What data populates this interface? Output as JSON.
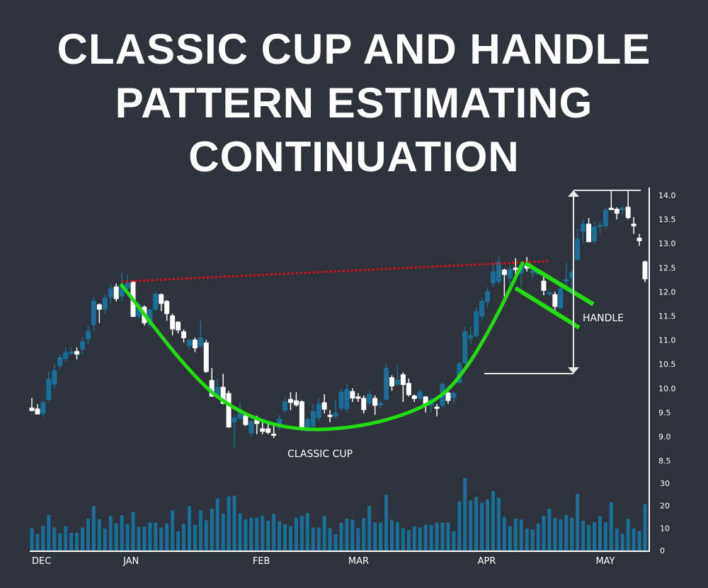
{
  "title": {
    "lines": [
      "CLASSIC CUP AND HANDLE",
      "PATTERN ESTIMATING",
      "CONTINUATION"
    ]
  },
  "chart_data": {
    "type": "candlestick",
    "title": "CLASSIC CUP AND HANDLE PATTERN ESTIMATING CONTINUATION",
    "price_axis": {
      "ylim": [
        8.5,
        14.0
      ],
      "ticks": [
        "14.0",
        "13.5",
        "13.0",
        "12.5",
        "12.0",
        "11.5",
        "11.0",
        "10.5",
        "10.0",
        "9.5",
        "9.0",
        "8.5"
      ]
    },
    "volume_axis": {
      "ylim": [
        0,
        30
      ],
      "ticks": [
        "30",
        "20",
        "10",
        "0"
      ]
    },
    "x_labels": [
      {
        "label": "DEC",
        "index": 0
      },
      {
        "label": "JAN",
        "index": 17
      },
      {
        "label": "FEB",
        "index": 40
      },
      {
        "label": "MAR",
        "index": 57
      },
      {
        "label": "APR",
        "index": 80
      },
      {
        "label": "MAY",
        "index": 101
      }
    ],
    "candle_format": [
      "open",
      "high",
      "low",
      "close"
    ],
    "colors": {
      "up": "#1a6f98",
      "down": "#ffffff",
      "volume": "#1a6f98",
      "cup": "#22dd11",
      "resistance": "#e0101a",
      "background": "#2e323a"
    },
    "candles": [
      [
        9.6,
        9.8,
        9.52,
        9.53
      ],
      [
        9.58,
        9.67,
        9.46,
        9.46
      ],
      [
        9.48,
        9.77,
        9.4,
        9.71
      ],
      [
        9.76,
        10.35,
        9.72,
        10.2
      ],
      [
        10.08,
        10.5,
        10.0,
        10.37
      ],
      [
        10.46,
        10.7,
        10.4,
        10.64
      ],
      [
        10.61,
        10.85,
        10.55,
        10.75
      ],
      [
        10.73,
        10.85,
        10.7,
        10.76
      ],
      [
        10.77,
        10.85,
        10.6,
        10.7
      ],
      [
        10.8,
        11.05,
        10.7,
        10.97
      ],
      [
        11.02,
        11.3,
        10.9,
        11.19
      ],
      [
        11.31,
        11.9,
        11.2,
        11.81
      ],
      [
        11.74,
        11.76,
        11.35,
        11.63
      ],
      [
        11.63,
        11.95,
        11.55,
        11.88
      ],
      [
        11.88,
        12.15,
        11.75,
        12.07
      ],
      [
        12.11,
        12.17,
        11.8,
        11.85
      ],
      [
        11.9,
        12.4,
        11.8,
        12.14
      ],
      [
        12.07,
        12.35,
        12.05,
        12.19
      ],
      [
        12.21,
        12.22,
        11.48,
        11.48
      ],
      [
        11.5,
        11.8,
        11.45,
        11.74
      ],
      [
        11.69,
        11.72,
        11.3,
        11.35
      ],
      [
        11.31,
        11.66,
        11.25,
        11.63
      ],
      [
        11.63,
        12.0,
        11.6,
        11.96
      ],
      [
        11.95,
        11.97,
        11.6,
        11.75
      ],
      [
        11.81,
        11.83,
        11.4,
        11.54
      ],
      [
        11.51,
        11.55,
        11.1,
        11.22
      ],
      [
        11.38,
        11.39,
        11.14,
        11.2
      ],
      [
        11.18,
        11.22,
        10.95,
        11.04
      ],
      [
        10.88,
        11.02,
        10.8,
        11.01
      ],
      [
        11.01,
        11.05,
        10.75,
        10.83
      ],
      [
        10.87,
        11.4,
        10.85,
        11.05
      ],
      [
        10.95,
        11.0,
        10.32,
        10.34
      ],
      [
        10.17,
        10.42,
        9.82,
        9.83
      ],
      [
        9.8,
        10.2,
        9.78,
        10.03
      ],
      [
        10.03,
        10.3,
        9.67,
        9.68
      ],
      [
        9.9,
        9.95,
        9.18,
        9.19
      ],
      [
        9.3,
        9.45,
        8.75,
        9.39
      ],
      [
        9.37,
        9.7,
        9.35,
        9.56
      ],
      [
        9.44,
        9.48,
        9.22,
        9.24
      ],
      [
        9.07,
        9.35,
        9.0,
        9.32
      ],
      [
        9.4,
        9.43,
        9.05,
        9.26
      ],
      [
        9.17,
        9.3,
        9.05,
        9.1
      ],
      [
        9.17,
        9.3,
        9.05,
        9.08
      ],
      [
        9.06,
        9.27,
        8.97,
        9.03
      ],
      [
        9.19,
        9.45,
        9.15,
        9.37
      ],
      [
        9.54,
        9.8,
        9.5,
        9.73
      ],
      [
        9.78,
        9.92,
        9.55,
        9.7
      ],
      [
        9.75,
        9.92,
        9.62,
        9.65
      ],
      [
        9.73,
        9.75,
        9.12,
        9.14
      ],
      [
        9.11,
        9.4,
        9.1,
        9.36
      ],
      [
        9.21,
        9.68,
        9.2,
        9.53
      ],
      [
        9.39,
        9.8,
        9.32,
        9.68
      ],
      [
        9.71,
        9.88,
        9.48,
        9.56
      ],
      [
        9.45,
        9.55,
        9.3,
        9.42
      ],
      [
        9.42,
        9.75,
        9.38,
        9.49
      ],
      [
        9.58,
        10.0,
        9.55,
        9.93
      ],
      [
        9.57,
        10.1,
        9.5,
        9.99
      ],
      [
        9.94,
        10.0,
        9.72,
        9.79
      ],
      [
        9.83,
        9.9,
        9.72,
        9.79
      ],
      [
        9.8,
        9.85,
        9.48,
        9.55
      ],
      [
        9.69,
        9.95,
        9.64,
        9.88
      ],
      [
        9.8,
        9.85,
        9.45,
        9.64
      ],
      [
        9.65,
        9.75,
        9.6,
        9.7
      ],
      [
        9.76,
        10.5,
        9.75,
        10.42
      ],
      [
        10.23,
        10.27,
        9.95,
        10.04
      ],
      [
        10.08,
        10.48,
        10.05,
        10.18
      ],
      [
        10.29,
        10.33,
        9.72,
        10.07
      ],
      [
        10.11,
        10.2,
        9.83,
        9.86
      ],
      [
        9.85,
        9.87,
        9.72,
        9.78
      ],
      [
        9.79,
        9.98,
        9.75,
        9.93
      ],
      [
        9.83,
        9.84,
        9.5,
        9.64
      ],
      [
        9.64,
        9.8,
        9.5,
        9.76
      ],
      [
        9.62,
        9.67,
        9.42,
        9.59
      ],
      [
        9.64,
        10.12,
        9.6,
        10.09
      ],
      [
        9.91,
        9.95,
        9.68,
        9.74
      ],
      [
        9.8,
        9.93,
        9.68,
        9.91
      ],
      [
        10.11,
        10.55,
        10.1,
        10.52
      ],
      [
        10.52,
        11.28,
        10.5,
        11.18
      ],
      [
        11.03,
        11.28,
        10.9,
        11.1
      ],
      [
        11.08,
        11.67,
        11.05,
        11.59
      ],
      [
        11.49,
        11.88,
        11.4,
        11.81
      ],
      [
        11.79,
        12.1,
        11.68,
        12.01
      ],
      [
        12.18,
        12.6,
        12.1,
        12.42
      ],
      [
        12.21,
        12.75,
        12.15,
        12.62
      ],
      [
        12.46,
        12.48,
        11.9,
        12.35
      ],
      [
        12.28,
        12.55,
        12.0,
        12.47
      ],
      [
        12.5,
        12.7,
        12.35,
        12.45
      ],
      [
        12.38,
        12.6,
        12.1,
        12.57
      ],
      [
        12.55,
        12.72,
        12.42,
        12.48
      ],
      [
        12.39,
        12.5,
        12.3,
        12.44
      ],
      [
        12.38,
        12.42,
        12.35,
        12.41
      ],
      [
        12.23,
        12.32,
        11.93,
        12.02
      ],
      [
        11.96,
        12.02,
        11.92,
        11.99
      ],
      [
        11.95,
        12.0,
        11.6,
        11.69
      ],
      [
        11.66,
        12.1,
        11.65,
        12.07
      ],
      [
        12.21,
        12.6,
        12.0,
        12.26
      ],
      [
        12.28,
        12.45,
        11.95,
        12.41
      ],
      [
        12.66,
        13.3,
        12.66,
        13.1
      ],
      [
        13.25,
        13.5,
        13.0,
        13.41
      ],
      [
        13.41,
        13.53,
        13.03,
        13.03
      ],
      [
        13.05,
        13.45,
        13.0,
        13.35
      ],
      [
        13.35,
        13.45,
        13.2,
        13.39
      ],
      [
        13.36,
        13.75,
        13.3,
        13.7
      ],
      [
        13.74,
        14.1,
        13.7,
        13.7
      ],
      [
        13.72,
        13.75,
        13.5,
        13.62
      ],
      [
        13.7,
        13.78,
        13.6,
        13.74
      ],
      [
        13.76,
        14.1,
        13.5,
        13.53
      ],
      [
        13.41,
        13.55,
        13.2,
        13.36
      ],
      [
        13.12,
        13.2,
        12.95,
        13.05
      ],
      [
        12.63,
        12.65,
        12.2,
        12.26
      ]
    ],
    "volume": [
      10,
      7.4,
      11,
      15.8,
      10.3,
      7.6,
      10.7,
      7.9,
      7.9,
      10.3,
      14.2,
      19.9,
      14,
      9.7,
      15.5,
      12.1,
      15.8,
      11.7,
      17.2,
      10.5,
      10.7,
      12.5,
      12.5,
      10.2,
      12.1,
      17.8,
      8.6,
      11.9,
      19.8,
      11.4,
      17.8,
      13.5,
      18.6,
      23.3,
      16.5,
      24.1,
      24.4,
      16.6,
      13.9,
      14.6,
      14.6,
      15.5,
      13.3,
      16.3,
      13.1,
      11.8,
      10.8,
      14.6,
      15.5,
      16.7,
      10.2,
      10.3,
      15.5,
      10,
      7.2,
      12.3,
      14.2,
      13.7,
      10,
      14.4,
      20,
      12.6,
      12.4,
      24.8,
      13.7,
      12.8,
      10,
      9.2,
      10.7,
      10.3,
      11.5,
      11.3,
      12.5,
      12.5,
      12.5,
      8.7,
      21.8,
      32.3,
      22.4,
      23.9,
      21.3,
      22.8,
      26.5,
      23.5,
      14.9,
      10.8,
      14.2,
      13.8,
      9.8,
      9.4,
      12.1,
      15.5,
      18.6,
      14.5,
      13.8,
      15.9,
      14.6,
      25.3,
      13.3,
      11.4,
      12.6,
      15.2,
      12.6,
      21.5,
      9.8,
      7.4,
      14.1,
      9.9,
      8.7,
      20.7
    ],
    "annotations": {
      "cup_label": "CLASSIC CUP",
      "handle_label": "HANDLE"
    }
  }
}
